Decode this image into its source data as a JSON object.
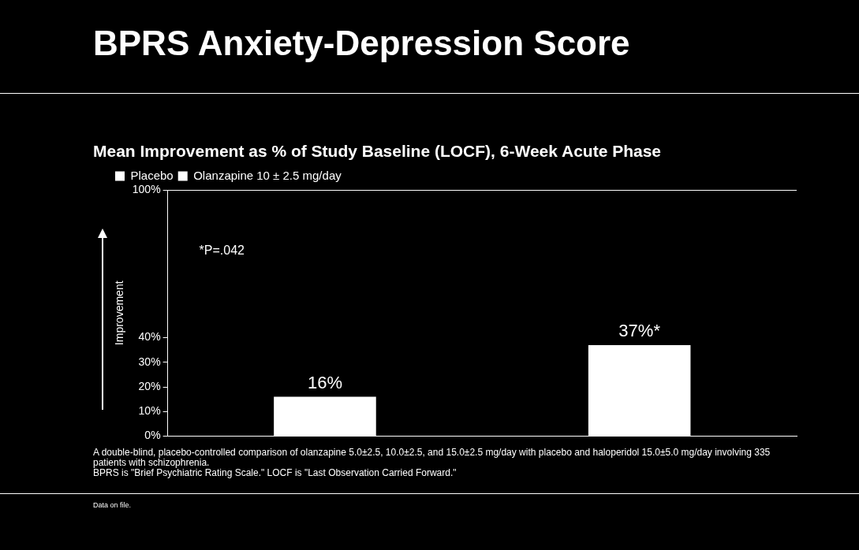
{
  "chart_data": {
    "type": "bar",
    "title": "BPRS Anxiety-Depression Score",
    "subtitle": "Mean Improvement as % of Study Baseline (LOCF), 6-Week Acute Phase",
    "ylabel": "Improvement",
    "categories": [
      null,
      null
    ],
    "series": [
      {
        "name": "Placebo",
        "color": "#ffffff",
        "values": [
          16,
          null
        ],
        "value_labels": [
          "16%",
          null
        ]
      },
      {
        "name": "Olanzapine 10 ± 2.5 mg/day",
        "color": "#ffffff",
        "values": [
          null,
          37
        ],
        "value_labels": [
          null,
          "37%*"
        ]
      }
    ],
    "ylim": [
      0,
      100
    ],
    "yticks": [
      {
        "value": 0,
        "label": "0%"
      },
      {
        "value": 10,
        "label": "10%"
      },
      {
        "value": 20,
        "label": "20%"
      },
      {
        "value": 30,
        "label": "30%"
      },
      {
        "value": 40,
        "label": "40%"
      },
      {
        "value": 100,
        "label": "100%"
      }
    ],
    "grid": false,
    "legend": "top left",
    "tick_labels": "y",
    "annotations": [
      "*P=.042",
      "A double-blind, placebo-controlled comparison of olanzapine 5.0±2.5, 10.0±2.5, and 15.0±2.5 mg/day with placebo and haloperidol 15.0±5.0 mg/day involving 335 patients with schizophrenia.",
      "BPRS is \"Brief Psychiatric Rating Scale.\" LOCF is \"Last Observation Carried Forward.\"",
      "Data on file."
    ]
  }
}
